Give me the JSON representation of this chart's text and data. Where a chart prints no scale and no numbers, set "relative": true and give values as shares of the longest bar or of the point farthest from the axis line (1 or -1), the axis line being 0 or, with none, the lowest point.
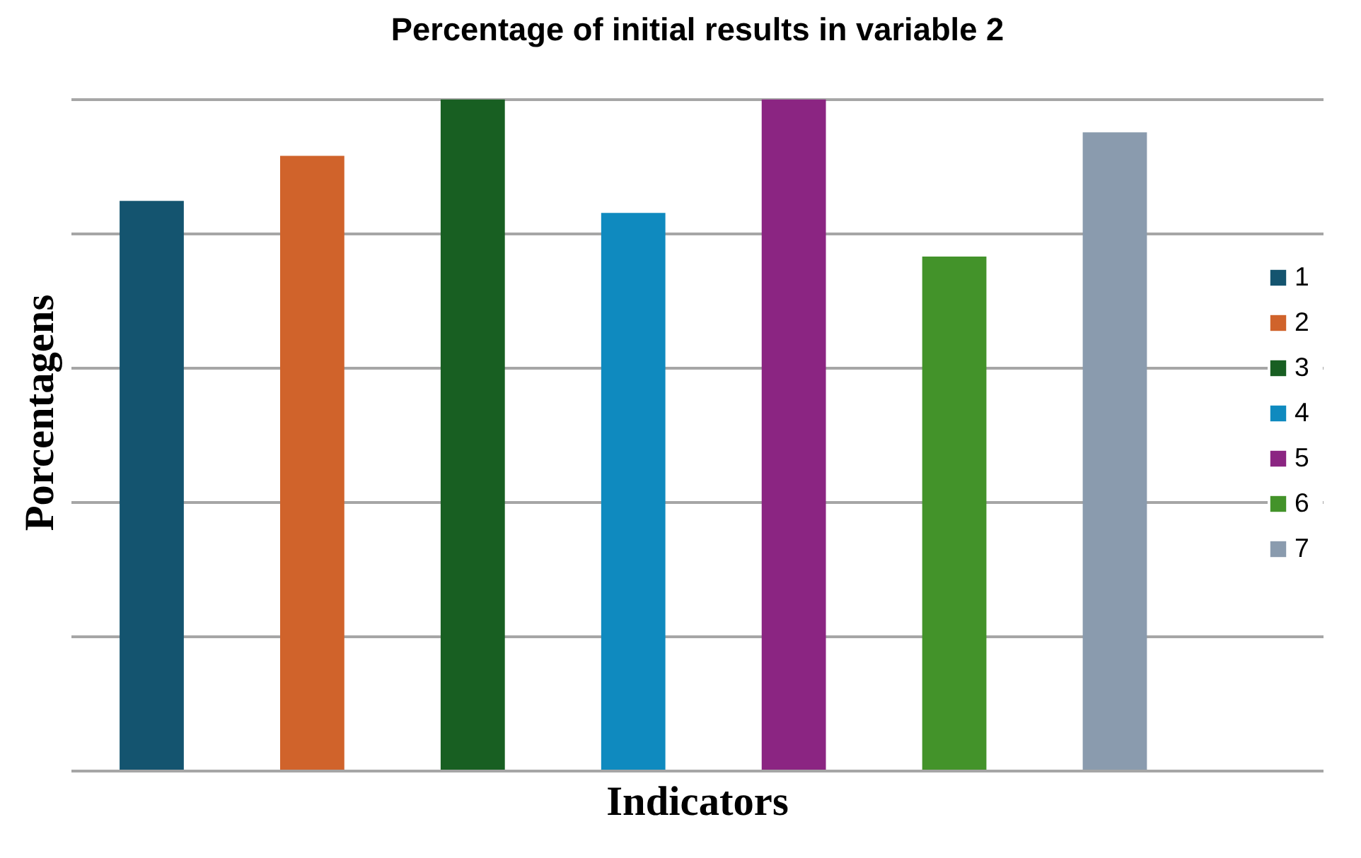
{
  "chart_data": {
    "type": "bar",
    "title": "Percentage of initial results in variable 2",
    "xlabel": "Indicators",
    "ylabel": "Porcentagens",
    "categories": [
      null,
      null,
      null,
      null,
      null,
      null,
      null
    ],
    "stacked": true,
    "series": [
      {
        "name": "1",
        "color": "#14546f",
        "values": [
          0.849,
          null,
          null,
          null,
          null,
          null,
          null
        ]
      },
      {
        "name": "2",
        "color": "#d0632b",
        "values": [
          null,
          0.916,
          null,
          null,
          null,
          null,
          null
        ]
      },
      {
        "name": "3",
        "color": "#185f22",
        "values": [
          null,
          null,
          1,
          null,
          null,
          null,
          null
        ]
      },
      {
        "name": "4",
        "color": "#0f8abf",
        "values": [
          null,
          null,
          null,
          0.831,
          null,
          null,
          null
        ]
      },
      {
        "name": "5",
        "color": "#8b2582",
        "values": [
          null,
          null,
          null,
          null,
          1,
          null,
          null
        ]
      },
      {
        "name": "6",
        "color": "#43932a",
        "values": [
          null,
          null,
          null,
          null,
          null,
          0.766,
          null
        ]
      },
      {
        "name": "7",
        "color": "#8a9bae",
        "values": [
          null,
          null,
          null,
          null,
          null,
          null,
          0.951
        ]
      }
    ],
    "relative": true,
    "grid": "y",
    "legend": "right",
    "tick_labels": false
  }
}
